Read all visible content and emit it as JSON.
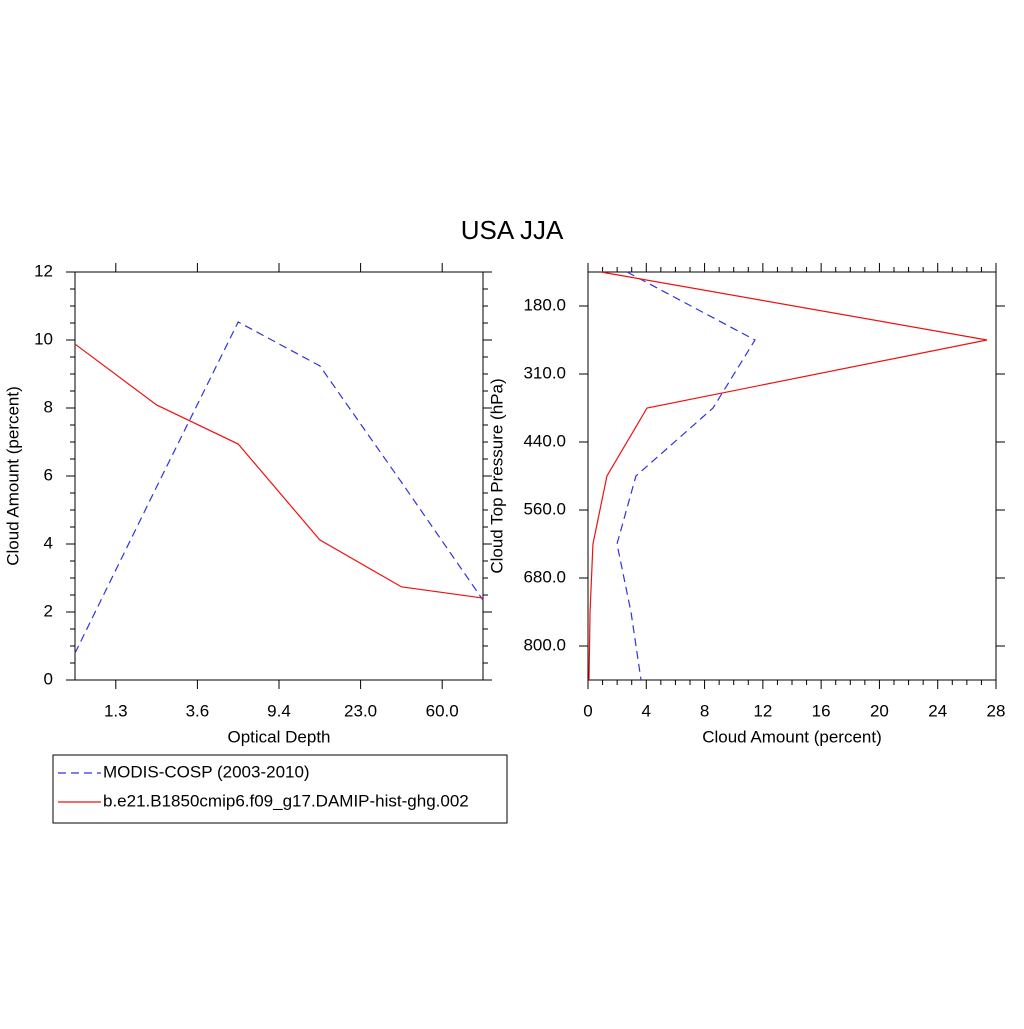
{
  "title": "USA JJA",
  "chart_data": [
    {
      "type": "line",
      "orientation": "vertical",
      "xlabel": "Optical Depth",
      "ylabel": "Cloud Amount (percent)",
      "x": [
        0,
        1,
        2,
        3,
        4,
        5
      ],
      "xlim": [
        0,
        5
      ],
      "xticks": [
        {
          "value": 0.5,
          "label": "1.3"
        },
        {
          "value": 1.5,
          "label": "3.6"
        },
        {
          "value": 2.5,
          "label": "9.4"
        },
        {
          "value": 3.5,
          "label": "23.0"
        },
        {
          "value": 4.5,
          "label": "60.0"
        }
      ],
      "ylim": [
        0,
        12
      ],
      "yticks": [
        0,
        2,
        4,
        6,
        8,
        10,
        12
      ],
      "series": [
        {
          "name": "MODIS-COSP (2003-2010)",
          "color": "#3333dd",
          "dashed": true,
          "values": [
            0.79,
            5.68,
            10.53,
            9.24,
            5.82,
            2.35
          ]
        },
        {
          "name": "b.e21.B1850cmip6.f09_g17.DAMIP-hist-ghg.002",
          "color": "#ee1111",
          "dashed": false,
          "values": [
            9.88,
            8.09,
            6.94,
            4.12,
            2.74,
            2.41
          ]
        }
      ],
      "legend": "below"
    },
    {
      "type": "line",
      "orientation": "horizontal",
      "xlabel": "Cloud Amount (percent)",
      "ylabel": "Cloud Top Pressure (hPa)",
      "y": [
        0,
        1,
        2,
        3,
        4,
        5,
        6
      ],
      "ylim": [
        6,
        0
      ],
      "yticks": [
        {
          "value": 0.5,
          "label": "180.0"
        },
        {
          "value": 1.5,
          "label": "310.0"
        },
        {
          "value": 2.5,
          "label": "440.0"
        },
        {
          "value": 3.5,
          "label": "560.0"
        },
        {
          "value": 4.5,
          "label": "680.0"
        },
        {
          "value": 5.5,
          "label": "800.0"
        }
      ],
      "xlim": [
        0,
        28
      ],
      "xticks": [
        0,
        4,
        8,
        12,
        16,
        20,
        24,
        28
      ],
      "series": [
        {
          "color": "#3333dd",
          "dashed": true,
          "values": [
            2.68,
            11.46,
            8.58,
            3.29,
            1.99,
            2.95,
            3.64
          ]
        },
        {
          "color": "#ee1111",
          "dashed": false,
          "values": [
            0.89,
            27.38,
            4.05,
            1.3,
            0.34,
            0.14,
            0.07
          ]
        }
      ]
    }
  ]
}
